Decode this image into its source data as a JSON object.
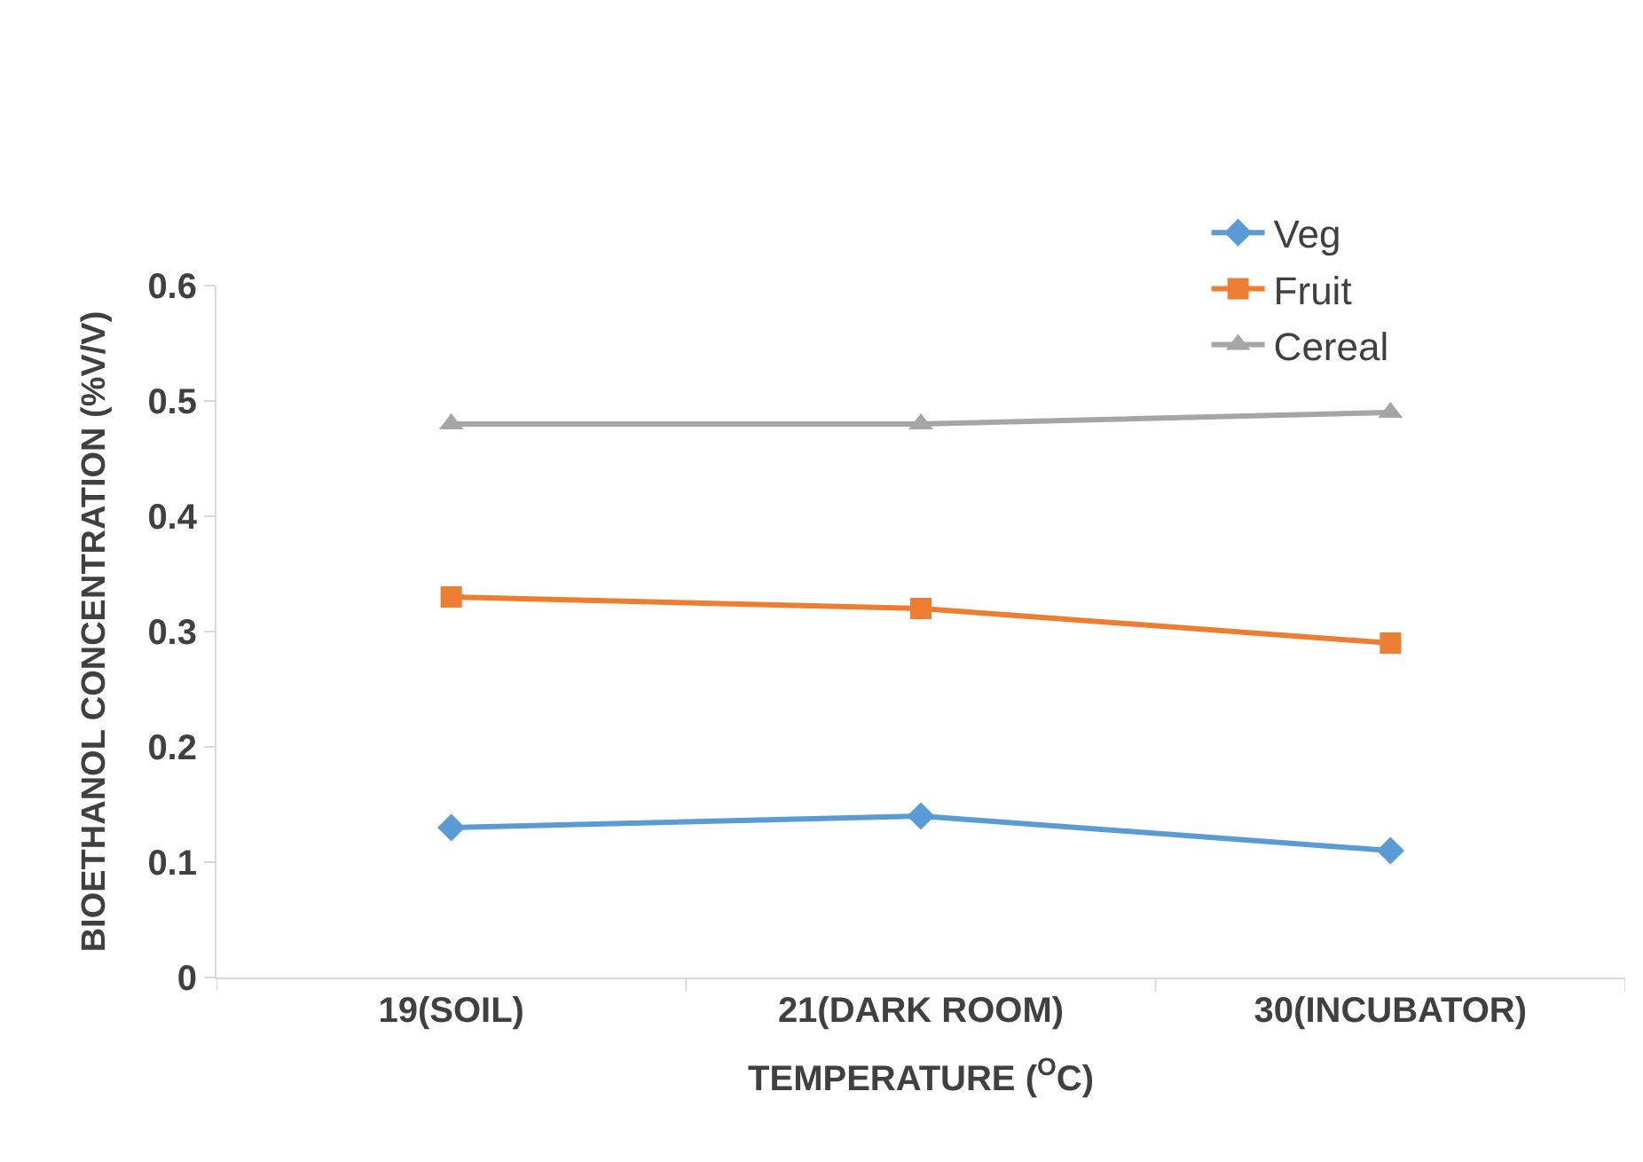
{
  "chart_data": {
    "type": "line",
    "xlabel": "TEMPERATURE ($^{O}$C)",
    "ylabel": "BIOETHANOL CONCENTRATION (%V/V)",
    "categories": [
      "19(SOIL)",
      "21(DARK ROOM)",
      "30(INCUBATOR)"
    ],
    "series": [
      {
        "name": "Veg",
        "color": "#5b9bd5",
        "marker": "diamond",
        "values": [
          0.13,
          0.14,
          0.11
        ]
      },
      {
        "name": "Fruit",
        "color": "#ed7d31",
        "marker": "square",
        "values": [
          0.33,
          0.32,
          0.29
        ]
      },
      {
        "name": "Cereal",
        "color": "#a5a5a5",
        "marker": "triangle",
        "values": [
          0.48,
          0.48,
          0.49
        ]
      }
    ],
    "ylim": [
      0,
      0.6
    ],
    "yticks": [
      0,
      0.1,
      0.2,
      0.3,
      0.4,
      0.5,
      0.6
    ],
    "grid": false,
    "legend": "top right",
    "line_style": "solid"
  }
}
